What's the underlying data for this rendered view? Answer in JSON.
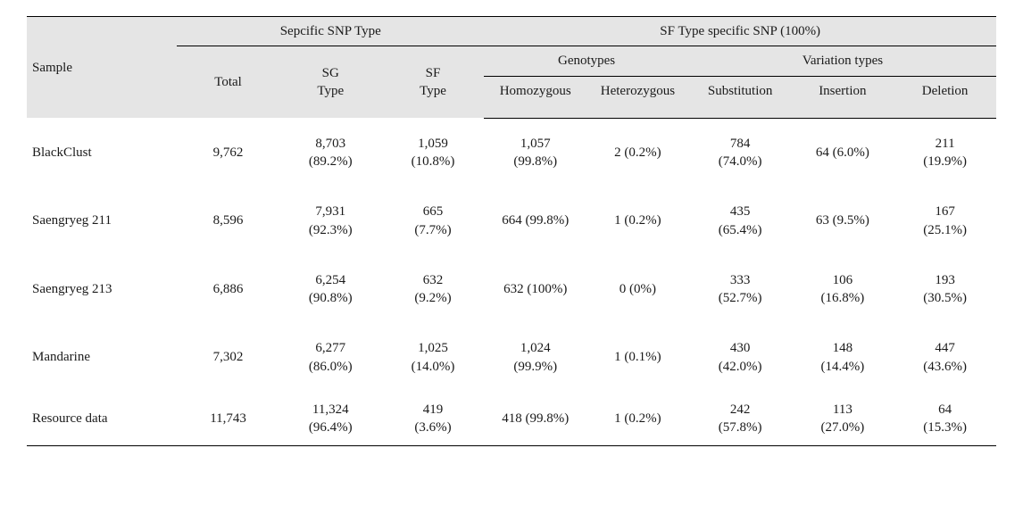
{
  "headers": {
    "sample": "Sample",
    "group1": "Sepcific SNP Type",
    "group2": "SF Type specific SNP (100%)",
    "total": "Total",
    "sg": "SG\nType",
    "sf": "SF\nType",
    "genotypes": "Genotypes",
    "variation": "Variation types",
    "homo": "Homozygous",
    "het": "Heterozygous",
    "sub": "Substitution",
    "ins": "Insertion",
    "del": "Deletion"
  },
  "rows": [
    {
      "sample": "BlackClust",
      "total": "9,762",
      "sg": "8,703\n(89.2%)",
      "sf": "1,059\n(10.8%)",
      "homo": "1,057\n(99.8%)",
      "het": "2 (0.2%)",
      "sub": "784\n(74.0%)",
      "ins": "64 (6.0%)",
      "del": "211\n(19.9%)"
    },
    {
      "sample": "Saengryeg 211",
      "total": "8,596",
      "sg": "7,931\n(92.3%)",
      "sf": "665\n(7.7%)",
      "homo": "664 (99.8%)",
      "het": "1 (0.2%)",
      "sub": "435\n(65.4%)",
      "ins": "63 (9.5%)",
      "del": "167\n(25.1%)"
    },
    {
      "sample": "Saengryeg 213",
      "total": "6,886",
      "sg": "6,254\n(90.8%)",
      "sf": "632\n(9.2%)",
      "homo": "632 (100%)",
      "het": "0 (0%)",
      "sub": "333\n(52.7%)",
      "ins": "106\n(16.8%)",
      "del": "193\n(30.5%)"
    },
    {
      "sample": "Mandarine",
      "total": "7,302",
      "sg": "6,277\n(86.0%)",
      "sf": "1,025\n(14.0%)",
      "homo": "1,024\n(99.9%)",
      "het": "1 (0.1%)",
      "sub": "430\n(42.0%)",
      "ins": "148\n(14.4%)",
      "del": "447\n(43.6%)"
    },
    {
      "sample": "Resource data",
      "total": "11,743",
      "sg": "11,324\n(96.4%)",
      "sf": "419\n(3.6%)",
      "homo": "418 (99.8%)",
      "het": "1 (0.2%)",
      "sub": "242\n(57.8%)",
      "ins": "113\n(27.0%)",
      "del": "64\n(15.3%)"
    }
  ],
  "style": {
    "bg_header": "#e5e5e5",
    "border_color": "#000000",
    "font_body_pt": 15
  }
}
